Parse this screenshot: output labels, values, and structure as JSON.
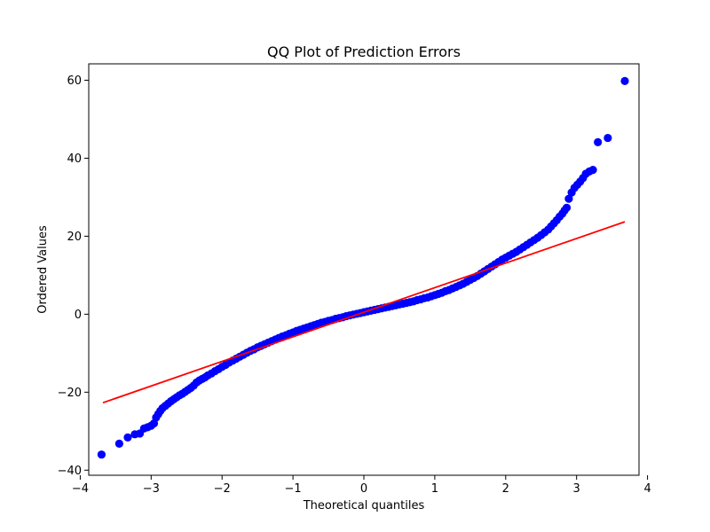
{
  "chart_data": {
    "type": "scatter",
    "title": "QQ Plot of Prediction Errors",
    "xlabel": "Theoretical quantiles",
    "ylabel": "Ordered Values",
    "xlim": [
      -3.88,
      3.88
    ],
    "ylim": [
      -41.3,
      64.2
    ],
    "xticks": [
      -4,
      -3,
      -2,
      -1,
      0,
      1,
      2,
      3,
      4
    ],
    "yticks": [
      -40,
      -20,
      0,
      20,
      40,
      60
    ],
    "grid": false,
    "point_color": "#0000ff",
    "line_color": "#ff0000",
    "points": [
      [
        -3.7,
        -36.0
      ],
      [
        -3.45,
        -33.2
      ],
      [
        -3.33,
        -31.6
      ],
      [
        -3.23,
        -30.8
      ],
      [
        -3.16,
        -30.6
      ],
      [
        -3.1,
        -29.3
      ],
      [
        -3.05,
        -29.0
      ],
      [
        -3.0,
        -28.6
      ],
      [
        -2.96,
        -28.0
      ],
      [
        -2.93,
        -26.5
      ],
      [
        -2.9,
        -25.6
      ],
      [
        -2.87,
        -24.8
      ],
      [
        -2.84,
        -24.1
      ],
      [
        -2.8,
        -23.5
      ],
      [
        -2.76,
        -22.9
      ],
      [
        -2.72,
        -22.3
      ],
      [
        -2.68,
        -21.8
      ],
      [
        -2.64,
        -21.3
      ],
      [
        -2.6,
        -20.8
      ],
      [
        -2.56,
        -20.4
      ],
      [
        -2.52,
        -19.9
      ],
      [
        -2.48,
        -19.4
      ],
      [
        -2.44,
        -18.9
      ],
      [
        -2.4,
        -18.3
      ],
      [
        -2.36,
        -17.5
      ],
      [
        -2.32,
        -17.0
      ],
      [
        -2.28,
        -16.6
      ],
      [
        -2.24,
        -16.2
      ],
      [
        -2.2,
        -15.7
      ],
      [
        -2.15,
        -15.2
      ],
      [
        -2.1,
        -14.6
      ],
      [
        -2.05,
        -14.1
      ],
      [
        -2.0,
        -13.5
      ],
      [
        -1.95,
        -13.0
      ],
      [
        -1.9,
        -12.4
      ],
      [
        -1.85,
        -11.9
      ],
      [
        -1.8,
        -11.4
      ],
      [
        -1.75,
        -10.9
      ],
      [
        -1.7,
        -10.4
      ],
      [
        -1.65,
        -9.9
      ],
      [
        -1.6,
        -9.4
      ],
      [
        -1.55,
        -9.0
      ],
      [
        -1.5,
        -8.5
      ],
      [
        -1.45,
        -8.1
      ],
      [
        -1.4,
        -7.7
      ],
      [
        -1.35,
        -7.3
      ],
      [
        -1.3,
        -6.9
      ],
      [
        -1.25,
        -6.5
      ],
      [
        -1.2,
        -6.1
      ],
      [
        -1.15,
        -5.7
      ],
      [
        -1.1,
        -5.4
      ],
      [
        -1.05,
        -5.0
      ],
      [
        -1.0,
        -4.7
      ],
      [
        -0.95,
        -4.3
      ],
      [
        -0.9,
        -4.0
      ],
      [
        -0.85,
        -3.7
      ],
      [
        -0.8,
        -3.4
      ],
      [
        -0.75,
        -3.1
      ],
      [
        -0.7,
        -2.8
      ],
      [
        -0.65,
        -2.5
      ],
      [
        -0.6,
        -2.2
      ],
      [
        -0.55,
        -2.0
      ],
      [
        -0.5,
        -1.7
      ],
      [
        -0.45,
        -1.5
      ],
      [
        -0.4,
        -1.2
      ],
      [
        -0.35,
        -1.0
      ],
      [
        -0.3,
        -0.8
      ],
      [
        -0.25,
        -0.5
      ],
      [
        -0.2,
        -0.3
      ],
      [
        -0.15,
        -0.1
      ],
      [
        -0.1,
        0.1
      ],
      [
        -0.05,
        0.3
      ],
      [
        0.0,
        0.5
      ],
      [
        0.05,
        0.7
      ],
      [
        0.1,
        0.9
      ],
      [
        0.15,
        1.1
      ],
      [
        0.2,
        1.3
      ],
      [
        0.25,
        1.5
      ],
      [
        0.3,
        1.7
      ],
      [
        0.35,
        1.9
      ],
      [
        0.4,
        2.1
      ],
      [
        0.45,
        2.3
      ],
      [
        0.5,
        2.5
      ],
      [
        0.55,
        2.7
      ],
      [
        0.6,
        2.9
      ],
      [
        0.65,
        3.1
      ],
      [
        0.7,
        3.3
      ],
      [
        0.75,
        3.6
      ],
      [
        0.8,
        3.8
      ],
      [
        0.85,
        4.1
      ],
      [
        0.9,
        4.3
      ],
      [
        0.95,
        4.6
      ],
      [
        1.0,
        4.9
      ],
      [
        1.05,
        5.2
      ],
      [
        1.1,
        5.5
      ],
      [
        1.15,
        5.9
      ],
      [
        1.2,
        6.2
      ],
      [
        1.25,
        6.6
      ],
      [
        1.3,
        7.0
      ],
      [
        1.35,
        7.4
      ],
      [
        1.4,
        7.8
      ],
      [
        1.45,
        8.3
      ],
      [
        1.5,
        8.8
      ],
      [
        1.55,
        9.3
      ],
      [
        1.6,
        9.8
      ],
      [
        1.65,
        10.4
      ],
      [
        1.7,
        11.0
      ],
      [
        1.75,
        11.6
      ],
      [
        1.8,
        12.2
      ],
      [
        1.85,
        12.8
      ],
      [
        1.9,
        13.4
      ],
      [
        1.95,
        14.0
      ],
      [
        2.0,
        14.5
      ],
      [
        2.05,
        15.0
      ],
      [
        2.1,
        15.5
      ],
      [
        2.15,
        16.0
      ],
      [
        2.2,
        16.6
      ],
      [
        2.25,
        17.2
      ],
      [
        2.3,
        17.8
      ],
      [
        2.35,
        18.4
      ],
      [
        2.4,
        19.0
      ],
      [
        2.45,
        19.6
      ],
      [
        2.5,
        20.3
      ],
      [
        2.55,
        21.0
      ],
      [
        2.6,
        21.7
      ],
      [
        2.64,
        22.5
      ],
      [
        2.68,
        23.3
      ],
      [
        2.72,
        24.1
      ],
      [
        2.76,
        25.0
      ],
      [
        2.8,
        25.8
      ],
      [
        2.83,
        26.6
      ],
      [
        2.86,
        27.3
      ],
      [
        2.89,
        29.6
      ],
      [
        2.93,
        31.2
      ],
      [
        2.97,
        32.4
      ],
      [
        3.01,
        33.2
      ],
      [
        3.05,
        34.0
      ],
      [
        3.09,
        34.9
      ],
      [
        3.13,
        36.0
      ],
      [
        3.18,
        36.6
      ],
      [
        3.23,
        37.0
      ],
      [
        3.3,
        44.1
      ],
      [
        3.44,
        45.2
      ],
      [
        3.68,
        59.8
      ]
    ],
    "fit_line": {
      "x": [
        -3.68,
        3.68
      ],
      "y": [
        -22.7,
        23.7
      ]
    }
  }
}
